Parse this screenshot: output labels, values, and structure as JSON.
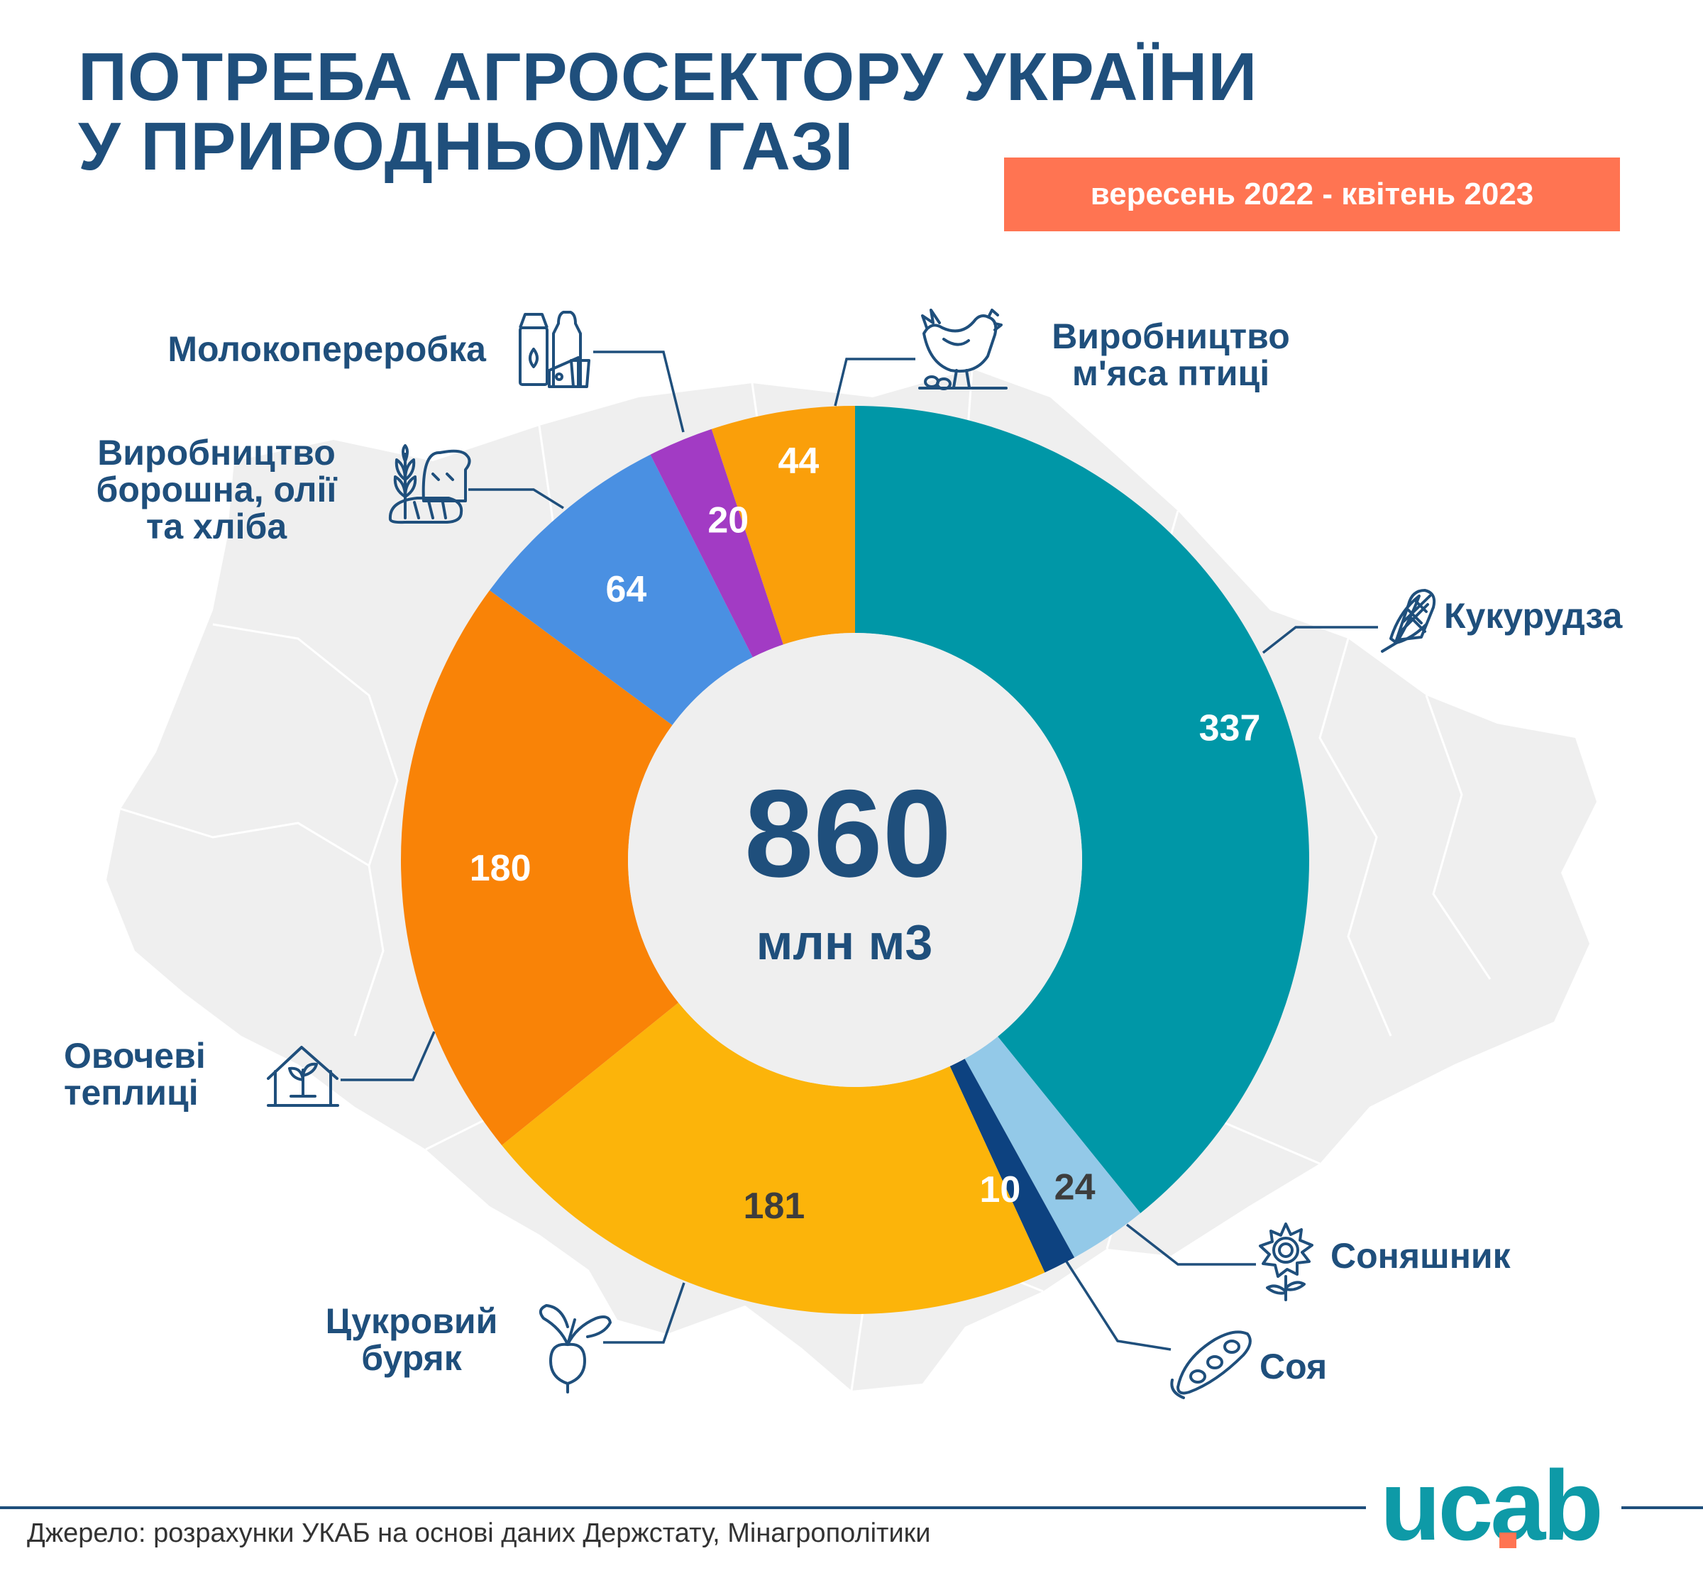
{
  "title_lines": [
    "ПОТРЕБА АГРОСЕКТОРУ УКРАЇНИ",
    "У ПРИРОДНЬОМУ ГАЗІ"
  ],
  "period": "вересень 2022 - квітень 2023",
  "source": "Джерело: розрахунки УКАБ на основі даних Держстату, Мінагрополітики",
  "logo": {
    "text": "ucab",
    "color": "#0e9aa7",
    "dot_color": "#ff7452",
    "icon": "ucab-logo"
  },
  "chart_data": {
    "type": "pie",
    "donut": true,
    "total": {
      "value": "860",
      "unit": "млн м3"
    },
    "slices": [
      {
        "label": "Кукурудза",
        "value": 337,
        "color": "#0097a7",
        "icon": "corn-icon",
        "value_color": "#ffffff"
      },
      {
        "label": "Соняшник",
        "value": 24,
        "color": "#93c9e8",
        "icon": "sunflower-icon",
        "value_color": "#3d3d3d"
      },
      {
        "label": "Соя",
        "value": 10,
        "color": "#0d4280",
        "icon": "soy-icon",
        "value_color": "#ffffff"
      },
      {
        "label": "Цукровий буряк",
        "value": 181,
        "color": "#fcb40a",
        "icon": "beet-icon",
        "value_color": "#3d3d3d"
      },
      {
        "label": "Овочеві теплиці",
        "value": 180,
        "color": "#f98307",
        "icon": "greenhouse-icon",
        "value_color": "#ffffff"
      },
      {
        "label": "Виробництво борошна, олії та хліба",
        "value": 64,
        "color": "#4a90e2",
        "icon": "wheat-bread-icon",
        "value_color": "#ffffff"
      },
      {
        "label": "Молокопереробка",
        "value": 20,
        "color": "#a23bc4",
        "icon": "dairy-icon",
        "value_color": "#ffffff"
      },
      {
        "label": "Виробництво м'яса птиці",
        "value": 44,
        "color": "#fa9f0a",
        "icon": "chicken-icon",
        "value_color": "#ffffff"
      }
    ],
    "category_labels": [
      [
        "Кукурудза"
      ],
      [
        "Соняшник"
      ],
      [
        "Соя"
      ],
      [
        "Цукровий",
        "буряк"
      ],
      [
        "Овочеві",
        "теплиці"
      ],
      [
        "Виробництво",
        "борошна, олії",
        "та хліба"
      ],
      [
        "Молокопереробка"
      ],
      [
        "Виробництво",
        "м'яса птиці"
      ]
    ],
    "background_map": "ukraine-map",
    "line_color": "#1f4f7c"
  }
}
